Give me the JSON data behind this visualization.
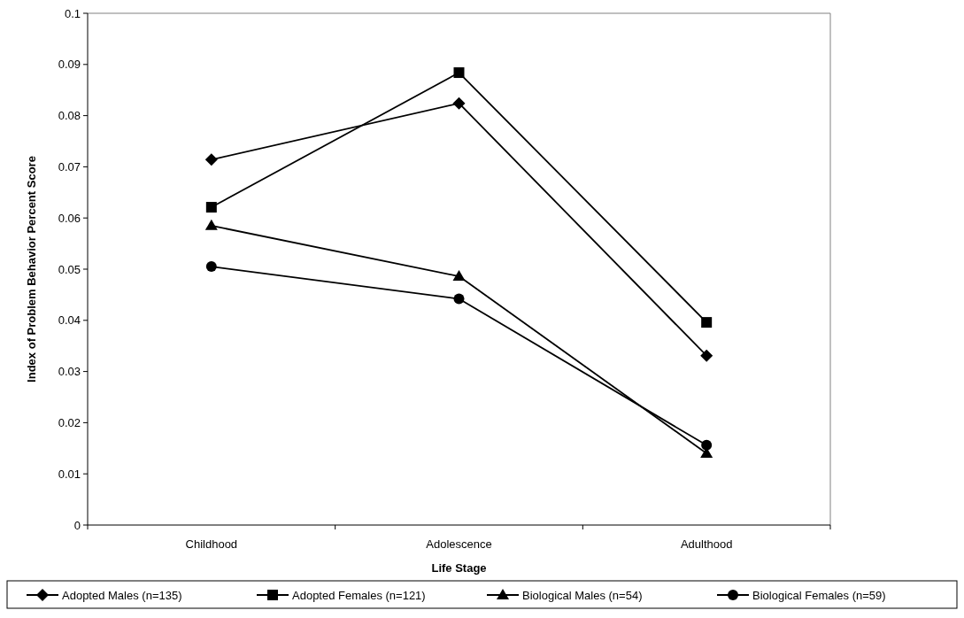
{
  "chart_data": {
    "type": "line",
    "xlabel": "Life Stage",
    "ylabel": "Index of Problem Behavior Percent Score",
    "categories": [
      "Childhood",
      "Adolescence",
      "Adulthood"
    ],
    "series": [
      {
        "name": "Adopted Males (n=135)",
        "color": "#000000",
        "marker": "diamond",
        "values": [
          0.0714,
          0.0824,
          0.0331
        ]
      },
      {
        "name": "Adopted Females (n=121)",
        "color": "#000000",
        "marker": "square",
        "values": [
          0.0621,
          0.0884,
          0.0396
        ]
      },
      {
        "name": "Biological Males (n=54)",
        "color": "#000000",
        "marker": "triangle",
        "values": [
          0.0585,
          0.0486,
          0.014
        ]
      },
      {
        "name": "Biological Females (n=59)",
        "color": "#000000",
        "marker": "circle",
        "values": [
          0.0505,
          0.0442,
          0.0156
        ]
      }
    ],
    "ylim": [
      0,
      0.1
    ],
    "yticks": [
      0,
      0.01,
      0.02,
      0.03,
      0.04,
      0.05,
      0.06,
      0.07,
      0.08,
      0.09,
      0.1
    ],
    "grid": false,
    "legend": "bottom",
    "line_style": "solid"
  }
}
